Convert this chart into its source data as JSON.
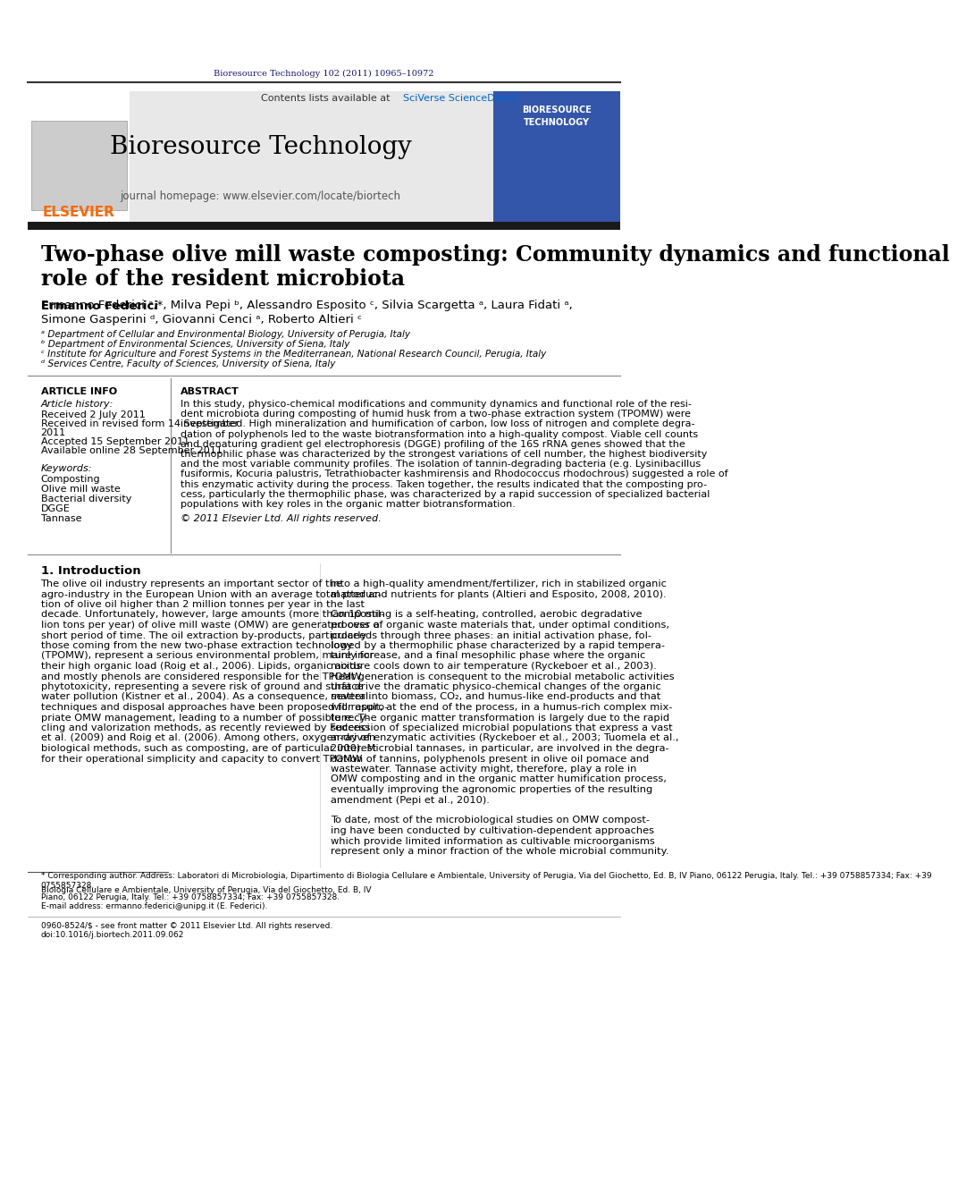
{
  "journal_header_text": "Bioresource Technology 102 (2011) 10965–10972",
  "journal_name": "Bioresource Technology",
  "journal_homepage": "journal homepage: www.elsevier.com/locate/biortech",
  "contents_text": "Contents lists available at SciVerse ScienceDirect",
  "elsevier_text": "ELSEVIER",
  "article_title_line1": "Two-phase olive mill waste composting: Community dynamics and functional",
  "article_title_line2": "role of the resident microbiota",
  "authors": "Ermanno Federici a,*, Milva Pepi b, Alessandro Esposito c, Silvia Scargetta a, Laura Fidati a,",
  "authors2": "Simone Gasperini d, Giovanni Cenci a, Roberto Altieri c",
  "affil_a": " a Department of Cellular and Environmental Biology, University of Perugia, Italy",
  "affil_b": " b Department of Environmental Sciences, University of Siena, Italy",
  "affil_c": " c Institute for Agriculture and Forest Systems in the Mediterranean, National Research Council, Perugia, Italy",
  "affil_d": " d Services Centre, Faculty of Sciences, University of Siena, Italy",
  "article_info_header": "ARTICLE INFO",
  "article_history_header": "Article history:",
  "received": "Received 2 July 2011",
  "received_revised": "Received in revised form 14 September\n2011",
  "accepted": "Accepted 15 September 2011",
  "available": "Available online 28 September 2011",
  "keywords_header": "Keywords:",
  "keywords": [
    "Composting",
    "Olive mill waste",
    "Bacterial diversity",
    "DGGE",
    "Tannase"
  ],
  "abstract_header": "ABSTRACT",
  "abstract_text": "In this study, physico-chemical modifications and community dynamics and functional role of the resident microbiota during composting of humid husk from a two-phase extraction system (TPOMW) were investigated. High mineralization and humification of carbon, low loss of nitrogen and complete degradation of polyphenols led to the waste biotransformation into a high-quality compost. Viable cell counts and denaturing gradient gel electrophoresis (DGGE) profiling of the 16S rRNA genes showed that the thermophilic phase was characterized by the strongest variations of cell number, the highest biodiversity and the most variable community profiles. The isolation of tannin-degrading bacteria (e.g. Lysinibacillus fusiformis, Kocuria palustris, Tetrathiobacter kashmirensis and Rhodococcus rhodochrous) suggested a role of this enzymatic activity during the process. Taken together, the results indicated that the composting process, particularly the thermophilic phase, was characterized by a rapid succession of specialized bacterial populations with key roles in the organic matter biotransformation.",
  "copyright_text": "© 2011 Elsevier Ltd. All rights reserved.",
  "intro_header": "1. Introduction",
  "intro_col1": "The olive oil industry represents an important sector of the agro-industry in the European Union with an average total production of olive oil higher than 2 million tonnes per year in the last decade. Unfortunately, however, large amounts (more than 10 million tons per year) of olive mill waste (OMW) are generated over a short period of time. The oil extraction by-products, particularly those coming from the new two-phase extraction technology (TPOMW), represent a serious environmental problem, mainly for their high organic load (Roig et al., 2006). Lipids, organic acids and mostly phenols are considered responsible for the TPOMW phytotoxicity, representing a severe risk of ground and surface water pollution (Kistner et al., 2004). As a consequence, several techniques and disposal approaches have been proposed for appropriate OMW management, leading to a number of possible recycling and valorization methods, as recently reviewed by Federici et al. (2009) and Roig et al. (2006). Among others, oxygen-driven biological methods, such as composting, are of particular interest for their operational simplicity and capacity to convert TPOMW",
  "intro_col2": "into a high-quality amendment/fertilizer, rich in stabilized organic matter and nutrients for plants (Altieri and Esposito, 2008, 2010).\n\nComposting is a self-heating, controlled, aerobic degradative process of organic waste materials that, under optimal conditions, proceeds through three phases: an initial activation phase, followed by a thermophilic phase characterized by a rapid temperature increase, and a final mesophilic phase where the organic mixture cools down to air temperature (Ryckeboer et al., 2003). Heat generation is consequent to the microbial metabolic activities that drive the dramatic physico-chemical changes of the organic matter into biomass, CO₂, and humus-like end-products and that will result, at the end of the process, in a humus-rich complex mixture. The organic matter transformation is largely due to the rapid succession of specialized microbial populations that express a vast array of enzymatic activities (Ryckeboer et al., 2003; Tuomela et al., 2000). Microbial tannases, in particular, are involved in the degradation of tannins, polyphenols present in olive oil pomace and wastewater. Tannase activity might, therefore, play a role in OMW composting and in the organic matter humification process, eventually improving the agronomic properties of the resulting amendment (Pepi et al., 2010).\n\nTo date, most of the microbiological studies on OMW composting have been conducted by cultivation-dependent approaches which provide limited information as cultivable microorganisms represent only a minor fraction of the whole microbial community.",
  "footnote_star": "* Corresponding author. Address: Laboratori di Microbiologia, Dipartimento di Biologia Cellulare e Ambientale, University of Perugia, Via del Giochetto, Ed. B, IV Piano, 06122 Perugia, Italy. Tel.: +39 0758857334; Fax: +39 0755857328.",
  "footnote_email": "E-mail address: ermanno.federici@unipg.it (E. Federici).",
  "issn_text": "0960-8524/$ - see front matter © 2011 Elsevier Ltd. All rights reserved.",
  "doi_text": "doi:10.1016/j.biortech.2011.09.062",
  "dark_navy": "#1a1a6e",
  "orange": "#FF6600",
  "link_blue": "#0066CC",
  "text_black": "#000000",
  "bg_white": "#FFFFFF",
  "header_bg": "#E8E8E8",
  "thick_bar_color": "#1a1a1a",
  "thin_line_color": "#333333"
}
